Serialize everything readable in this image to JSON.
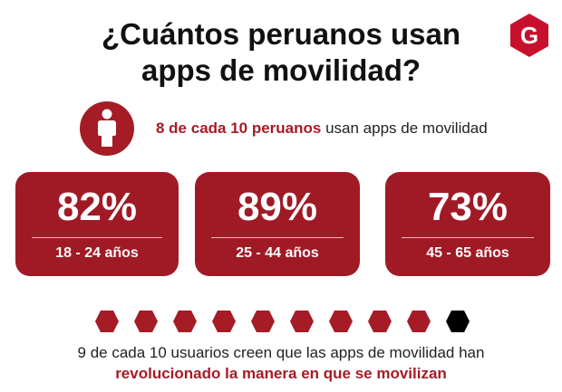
{
  "title": {
    "line1": "¿Cuántos peruanos usan",
    "line2": "apps de movilidad?"
  },
  "logo": {
    "icon": "g-logo-icon",
    "color": "#c8102e"
  },
  "stat": {
    "icon": "person-icon",
    "highlight": "8 de cada 10 peruanos",
    "rest": " usan apps de movilidad"
  },
  "cards": [
    {
      "percent": "82%",
      "age": "18 - 24 años"
    },
    {
      "percent": "89%",
      "age": "25 - 44 años"
    },
    {
      "percent": "73%",
      "age": "45 - 65 años"
    }
  ],
  "hex_indicator": {
    "filled": 9,
    "total": 10,
    "filled_color": "#a51c26",
    "empty_color": "#000000"
  },
  "footer": {
    "line1": "9 de cada 10 usuarios creen que las apps de movilidad han",
    "line2": "revolucionado la manera en que se movilizan"
  },
  "colors": {
    "accent": "#a01a26"
  }
}
